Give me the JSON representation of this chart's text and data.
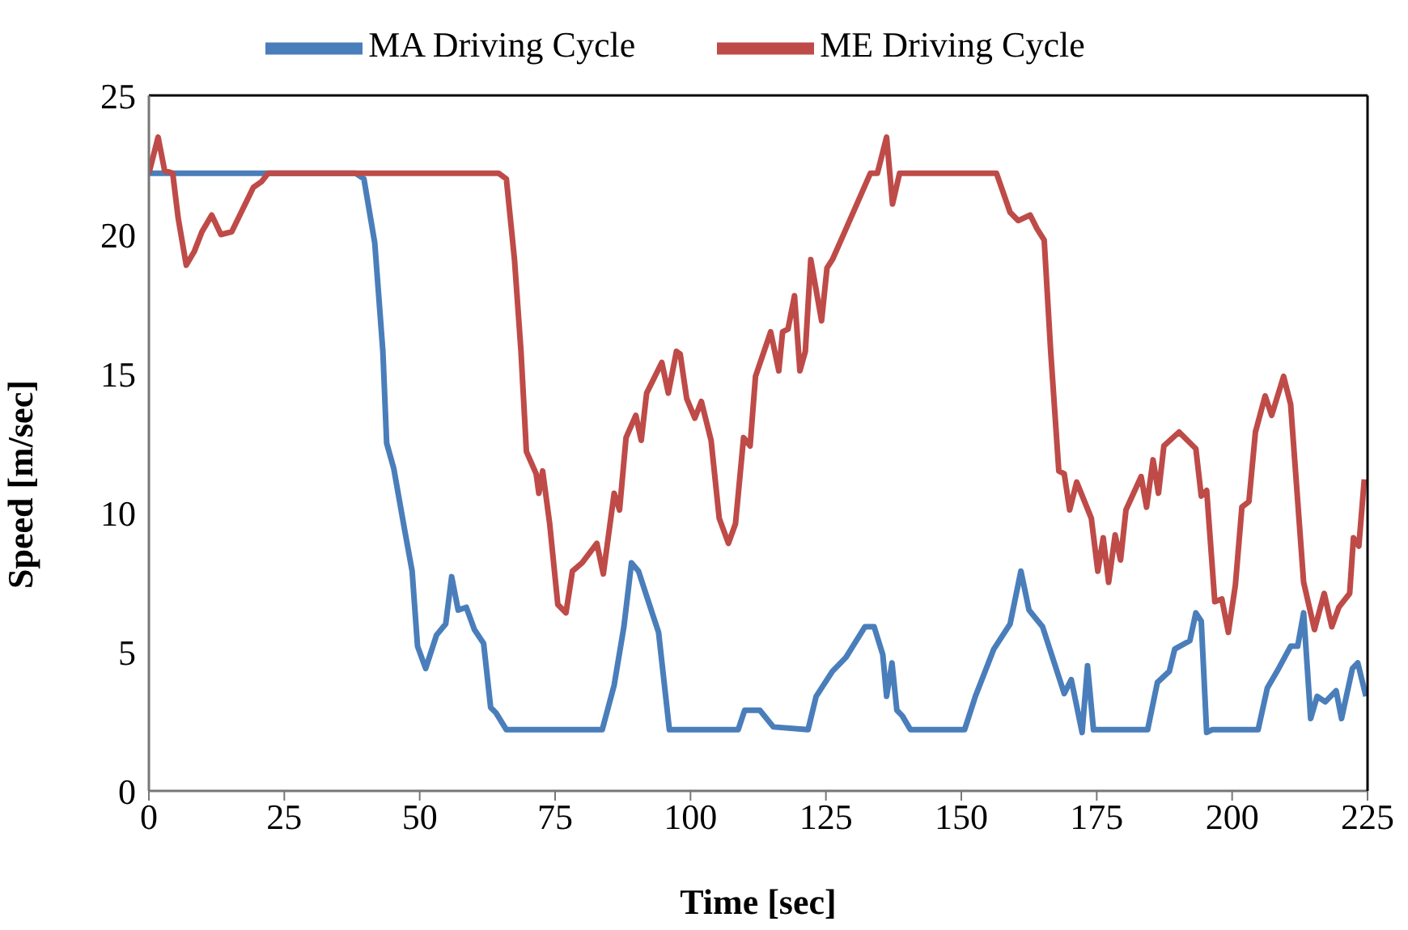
{
  "chart_data": {
    "type": "line",
    "xlabel": "Time [sec]",
    "ylabel": "Speed [m/sec]",
    "xlim": [
      0,
      225
    ],
    "xticks": [
      0,
      25,
      50,
      75,
      100,
      125,
      150,
      175,
      200,
      225
    ],
    "ylim": [
      0,
      25
    ],
    "yticks": [
      0,
      5,
      10,
      15,
      20,
      25
    ],
    "grid": false,
    "legend": "top",
    "marker": "none",
    "line_style": "solid",
    "series": [
      {
        "name": "MA Driving Cycle",
        "color": "#4a7ebb",
        "x": [
          0,
          38.2,
          39.7,
          41.7,
          43.2,
          43.9,
          45.2,
          47.2,
          48.6,
          49.6,
          51.1,
          53.1,
          54.8,
          55.9,
          57.1,
          58.6,
          60.1,
          61.8,
          63.1,
          64.1,
          66,
          83.7,
          85.9,
          87.7,
          89.1,
          90.4,
          91.9,
          94.1,
          96.1,
          108.8,
          110,
          112.8,
          115.3,
          121.7,
          123.2,
          126.2,
          128.7,
          132.2,
          133.9,
          135.5,
          136.2,
          137.2,
          138.1,
          139.1,
          140.6,
          150.6,
          152.6,
          156,
          159,
          161,
          162.5,
          165,
          169,
          170.3,
          172.3,
          173.3,
          174.4,
          184.4,
          186.2,
          188.4,
          189.4,
          192.2,
          193.3,
          194.3,
          195.3,
          196.3,
          204.8,
          206.5,
          208.3,
          210.8,
          212.1,
          213.2,
          214.5,
          215.7,
          217.2,
          219.2,
          220.2,
          222.2,
          223.2,
          224.7
        ],
        "values": [
          22.2,
          22.2,
          22,
          19.7,
          15.8,
          12.5,
          11.6,
          9.4,
          7.9,
          5.2,
          4.4,
          5.6,
          6,
          7.7,
          6.5,
          6.6,
          5.8,
          5.3,
          3,
          2.8,
          2.2,
          2.2,
          3.8,
          5.9,
          8.2,
          7.9,
          7,
          5.7,
          2.2,
          2.2,
          2.9,
          2.9,
          2.3,
          2.2,
          3.4,
          4.3,
          4.8,
          5.9,
          5.9,
          4.9,
          3.4,
          4.6,
          2.9,
          2.7,
          2.2,
          2.2,
          3.4,
          5.1,
          6,
          7.9,
          6.5,
          5.9,
          3.5,
          4,
          2.1,
          4.5,
          2.2,
          2.2,
          3.9,
          4.3,
          5.1,
          5.4,
          6.4,
          6.1,
          2.1,
          2.2,
          2.2,
          3.7,
          4.3,
          5.2,
          5.2,
          6.4,
          2.6,
          3.4,
          3.2,
          3.6,
          2.6,
          4.4,
          4.6,
          3.4
        ]
      },
      {
        "name": "ME Driving Cycle",
        "color": "#be4b48",
        "x": [
          0,
          1.7,
          2.9,
          4.4,
          5.4,
          6.9,
          8.4,
          9.8,
          11.6,
          13.3,
          15.3,
          17.3,
          19.3,
          20.8,
          22,
          64.6,
          66,
          67.5,
          68.7,
          69.7,
          71.5,
          72,
          72.7,
          74,
          75.5,
          77,
          78.2,
          80,
          82.7,
          83.9,
          85.9,
          86.9,
          88.1,
          89.9,
          90.9,
          91.9,
          94.7,
          95.9,
          97.4,
          98.1,
          99.3,
          100.8,
          102,
          103.8,
          105.3,
          107,
          108.3,
          109.8,
          111,
          112,
          114.8,
          116.3,
          117,
          118,
          119.2,
          120.2,
          121.2,
          122.2,
          124.2,
          125.2,
          126.2,
          128.7,
          133.2,
          134.5,
          136.2,
          137.3,
          138.6,
          156.5,
          159,
          160.5,
          162.7,
          164,
          165.3,
          166.5,
          168,
          169,
          170,
          171.3,
          174,
          175.2,
          176.2,
          177.2,
          178.4,
          179.4,
          180.4,
          183.2,
          184.2,
          185.4,
          186.4,
          187.4,
          190.2,
          193.3,
          194.3,
          195.3,
          196.8,
          198.1,
          199.3,
          200.6,
          201.8,
          203.1,
          204.3,
          206.1,
          207.3,
          209.5,
          210.8,
          213.2,
          215.2,
          217,
          218.4,
          219.7,
          221.7,
          222.4,
          223.4,
          224.4
        ],
        "values": [
          22.2,
          23.5,
          22.3,
          22.2,
          20.6,
          18.9,
          19.4,
          20.1,
          20.7,
          20,
          20.1,
          20.9,
          21.7,
          21.9,
          22.2,
          22.2,
          22,
          19.1,
          15.8,
          12.2,
          11.4,
          10.7,
          11.5,
          9.6,
          6.7,
          6.4,
          7.9,
          8.2,
          8.9,
          7.8,
          10.7,
          10.1,
          12.7,
          13.5,
          12.6,
          14.3,
          15.4,
          14.3,
          15.8,
          15.7,
          14.1,
          13.4,
          14,
          12.6,
          9.8,
          8.9,
          9.6,
          12.7,
          12.4,
          14.9,
          16.5,
          15.1,
          16.5,
          16.6,
          17.8,
          15.1,
          15.8,
          19.1,
          16.9,
          18.8,
          19.1,
          20.2,
          22.2,
          22.2,
          23.5,
          21.1,
          22.2,
          22.2,
          20.8,
          20.5,
          20.7,
          20.2,
          19.8,
          15.8,
          11.5,
          11.4,
          10.1,
          11.1,
          9.8,
          7.9,
          9.1,
          7.5,
          9.2,
          8.3,
          10.1,
          11.3,
          10.2,
          11.9,
          10.7,
          12.4,
          12.9,
          12.3,
          10.6,
          10.8,
          6.8,
          6.9,
          5.7,
          7.4,
          10.2,
          10.4,
          12.9,
          14.2,
          13.5,
          14.9,
          13.9,
          7.5,
          5.8,
          7.1,
          5.9,
          6.6,
          7.1,
          9.1,
          8.8,
          11.2
        ]
      }
    ]
  }
}
